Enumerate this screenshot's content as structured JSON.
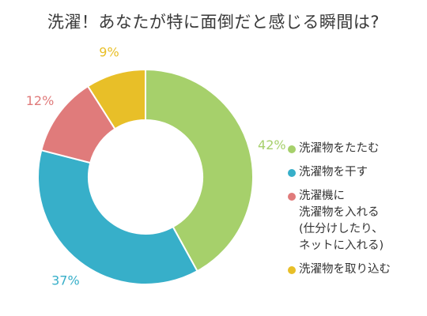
{
  "chart_data": {
    "type": "pie",
    "donut": true,
    "title": "洗濯！あなたが特に面倒だと感じる瞬間は?",
    "legend_position": "right",
    "slices": [
      {
        "label": "洗濯物をたたむ",
        "value": 42,
        "value_label": "42%",
        "color": "#a6d06b"
      },
      {
        "label": "洗濯物を干す",
        "value": 37,
        "value_label": "37%",
        "color": "#37afc9"
      },
      {
        "label": "洗濯機に\n洗濯物を入れる\n(仕分けしたり、\nネットに入れる)",
        "value": 12,
        "value_label": "12%",
        "color": "#e07b7b"
      },
      {
        "label": "洗濯物を取り込む",
        "value": 9,
        "value_label": "9%",
        "color": "#e8bf28"
      }
    ]
  }
}
